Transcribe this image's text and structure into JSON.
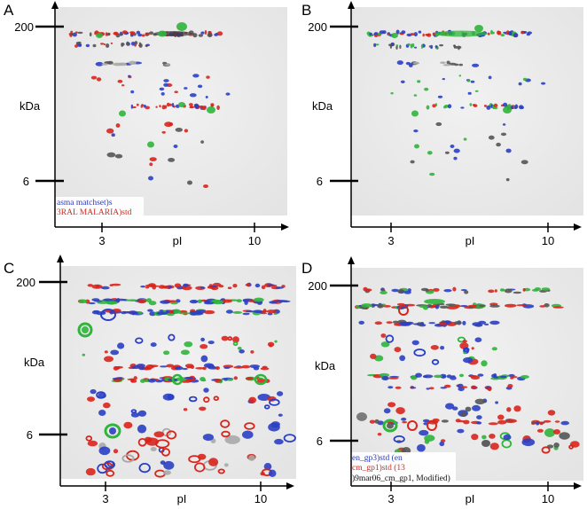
{
  "panels": [
    {
      "letter": "A",
      "y_ticks": [
        "200",
        "6"
      ],
      "y_label": "kDa",
      "x_ticks": [
        "3",
        "10"
      ],
      "x_label": "pI",
      "legend": [
        {
          "text": "asma matchset)s",
          "color": "#2f3ab0"
        },
        {
          "text": "3RAL MALARIA)std",
          "color": "#d42a1f"
        }
      ]
    },
    {
      "letter": "B",
      "y_ticks": [
        "200",
        "6"
      ],
      "y_label": "kDa",
      "x_ticks": [
        "3",
        "10"
      ],
      "x_label": "pI",
      "legend": []
    },
    {
      "letter": "C",
      "y_ticks": [
        "200",
        "6"
      ],
      "y_label": "kDa",
      "x_ticks": [
        "3",
        "10"
      ],
      "x_label": "pI",
      "legend": []
    },
    {
      "letter": "D",
      "y_ticks": [
        "200",
        "6"
      ],
      "y_label": "kDa",
      "x_ticks": [
        "3",
        "10"
      ],
      "x_label": "pI",
      "legend": [
        {
          "text": "en_gp3)std (en",
          "color": "#2f3ab0"
        },
        {
          "text": "cm_gp1)std (13",
          "color": "#d42a1f"
        },
        {
          "text": ")9mar06_cm_gp1, Modified)",
          "color": "#111111"
        }
      ]
    }
  ],
  "colors": {
    "blue_spot": "#2b3fc4",
    "red_spot": "#d8251c",
    "green_spot": "#2fb53b",
    "gel_background": "#ededed"
  }
}
